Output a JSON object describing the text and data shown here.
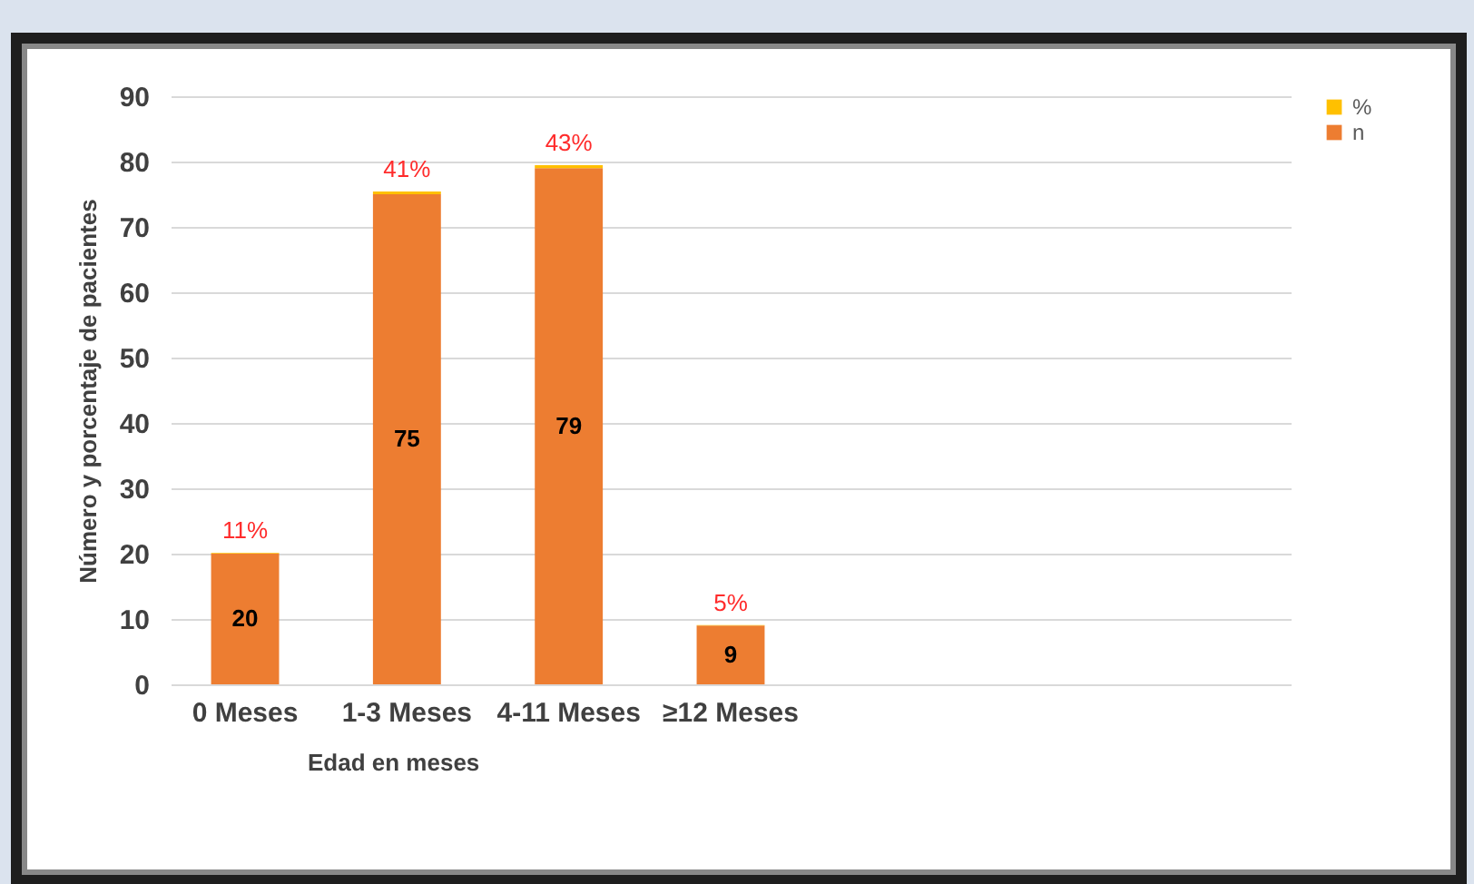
{
  "chart_data": {
    "type": "bar",
    "stacked": true,
    "xlabel": "Edad en meses",
    "ylabel": "Número y porcentaje de pacientes",
    "categories": [
      "0 Meses",
      "1-3 Meses",
      "4-11 Meses",
      "≥12 Meses",
      null,
      null,
      null
    ],
    "series": [
      {
        "name": "n",
        "color": "#ed7d31",
        "values": [
          20,
          75,
          79,
          9,
          null,
          null,
          null
        ],
        "value_labels": [
          "20",
          "75",
          "79",
          "9",
          null,
          null,
          null
        ]
      },
      {
        "name": "%",
        "color": "#ffc000",
        "values": [
          0.11,
          0.41,
          0.43,
          0.05,
          null,
          null,
          null
        ],
        "value_labels": [
          "11%",
          "41%",
          "43%",
          "5%",
          null,
          null,
          null
        ]
      }
    ],
    "ylim": [
      0,
      90
    ],
    "yticks": [
      0,
      10,
      20,
      30,
      40,
      50,
      60,
      70,
      80,
      90
    ],
    "grid": "y",
    "legend": "right"
  }
}
